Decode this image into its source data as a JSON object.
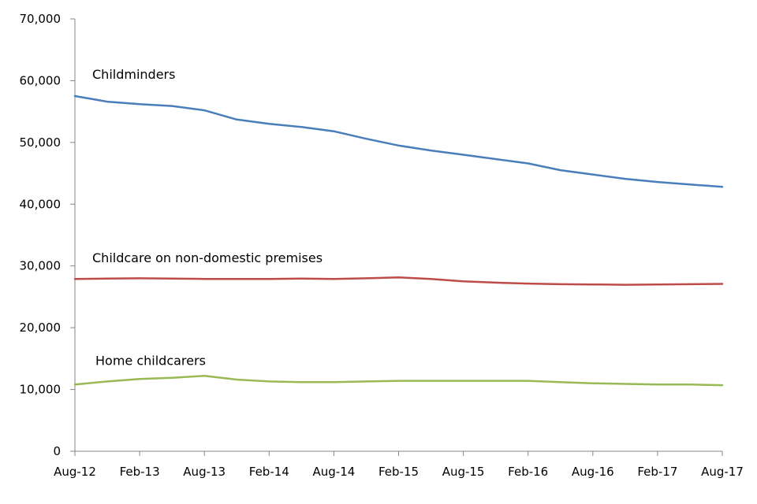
{
  "chart_data": {
    "type": "line",
    "title": "",
    "xlabel": "",
    "ylabel": "",
    "x": [
      "Aug-12",
      "Nov-12",
      "Feb-13",
      "May-13",
      "Aug-13",
      "Nov-13",
      "Feb-14",
      "May-14",
      "Aug-14",
      "Nov-14",
      "Feb-15",
      "May-15",
      "Aug-15",
      "Nov-15",
      "Feb-16",
      "May-16",
      "Aug-16",
      "Nov-16",
      "Feb-17",
      "May-17",
      "Aug-17"
    ],
    "x_tick_labels": [
      "Aug-12",
      "Feb-13",
      "Aug-13",
      "Feb-14",
      "Aug-14",
      "Feb-15",
      "Aug-15",
      "Feb-16",
      "Aug-16",
      "Feb-17",
      "Aug-17"
    ],
    "ylim": [
      0,
      70000
    ],
    "y_ticks": [
      0,
      10000,
      20000,
      30000,
      40000,
      50000,
      60000,
      70000
    ],
    "y_tick_labels": [
      "0",
      "10,000",
      "20,000",
      "30,000",
      "40,000",
      "50,000",
      "60,000",
      "70,000"
    ],
    "grid": false,
    "legend": "none",
    "series": [
      {
        "name": "Childminders",
        "color": "#4a7ebb",
        "values": [
          57500,
          56600,
          56200,
          55900,
          55200,
          53700,
          53000,
          52500,
          51800,
          50600,
          49500,
          48700,
          48000,
          47300,
          46600,
          45500,
          44800,
          44100,
          43600,
          43200,
          42800
        ]
      },
      {
        "name": "Childcare on non-domestic premises",
        "color": "#be4b48",
        "values": [
          27900,
          27950,
          28000,
          27950,
          27900,
          27900,
          27900,
          27950,
          27900,
          28000,
          28150,
          27900,
          27500,
          27300,
          27150,
          27050,
          27000,
          26950,
          27000,
          27050,
          27100
        ]
      },
      {
        "name": "Home childcarers",
        "color": "#98b954",
        "values": [
          10800,
          11300,
          11700,
          11900,
          12200,
          11600,
          11300,
          11200,
          11200,
          11300,
          11400,
          11400,
          11400,
          11400,
          11400,
          11200,
          11000,
          10900,
          10800,
          10800,
          10700
        ]
      }
    ]
  }
}
